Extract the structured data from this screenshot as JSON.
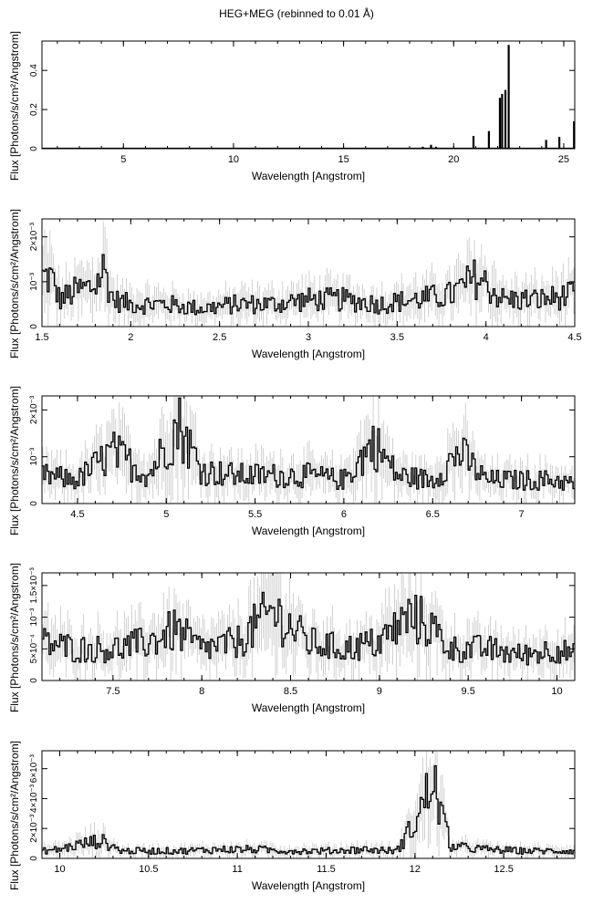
{
  "page_title": "HEG+MEG (rebinned to 0.01 Å)",
  "chart_data": [
    {
      "type": "line",
      "xlabel": "Wavelength [Angstrom]",
      "ylabel": "Flux [Photons/s/cm²/Angstrom]",
      "xlim": [
        1.3,
        25.5
      ],
      "ylim": [
        0,
        0.55
      ],
      "xticks": [
        5,
        10,
        15,
        20,
        25
      ],
      "yticks": [
        {
          "v": 0,
          "label": "0"
        },
        {
          "v": 0.2,
          "label": "0.2"
        },
        {
          "v": 0.4,
          "label": "0.4"
        }
      ],
      "lines": [
        {
          "x": 18.6,
          "y": 0.01
        },
        {
          "x": 18.97,
          "y": 0.02
        },
        {
          "x": 19.2,
          "y": 0.01
        },
        {
          "x": 20.9,
          "y": 0.065
        },
        {
          "x": 21.6,
          "y": 0.09
        },
        {
          "x": 22.1,
          "y": 0.26
        },
        {
          "x": 22.2,
          "y": 0.28
        },
        {
          "x": 22.35,
          "y": 0.3
        },
        {
          "x": 22.5,
          "y": 0.53
        },
        {
          "x": 24.2,
          "y": 0.045
        },
        {
          "x": 24.8,
          "y": 0.06
        },
        {
          "x": 25.5,
          "y": 0.14
        }
      ],
      "baseline": 0.002
    },
    {
      "type": "line",
      "xlabel": "Wavelength [Angstrom]",
      "ylabel": "Flux [Photons/s/cm²/Angstrom]",
      "xlim": [
        1.5,
        4.5
      ],
      "ylim": [
        0,
        0.0024
      ],
      "xticks": [
        1.5,
        2,
        2.5,
        3,
        3.5,
        4,
        4.5
      ],
      "yticks": [
        {
          "v": 0,
          "label": "0"
        },
        {
          "v": 0.001,
          "label": "10⁻³"
        },
        {
          "v": 0.002,
          "label": "2×10⁻³"
        }
      ],
      "points": [
        {
          "x": 1.55,
          "y": 0.0011
        },
        {
          "x": 1.6,
          "y": 0.0006
        },
        {
          "x": 1.7,
          "y": 0.0008
        },
        {
          "x": 1.8,
          "y": 0.0009
        },
        {
          "x": 1.85,
          "y": 0.0013
        },
        {
          "x": 1.9,
          "y": 0.0006
        },
        {
          "x": 2.0,
          "y": 0.0005
        },
        {
          "x": 2.2,
          "y": 0.0005
        },
        {
          "x": 2.4,
          "y": 0.0004
        },
        {
          "x": 2.6,
          "y": 0.0005
        },
        {
          "x": 2.8,
          "y": 0.0005
        },
        {
          "x": 3.0,
          "y": 0.0006
        },
        {
          "x": 3.2,
          "y": 0.0006
        },
        {
          "x": 3.4,
          "y": 0.0005
        },
        {
          "x": 3.6,
          "y": 0.0006
        },
        {
          "x": 3.8,
          "y": 0.0007
        },
        {
          "x": 3.95,
          "y": 0.0011
        },
        {
          "x": 4.1,
          "y": 0.0006
        },
        {
          "x": 4.3,
          "y": 0.0006
        },
        {
          "x": 4.5,
          "y": 0.0007
        }
      ]
    },
    {
      "type": "line",
      "xlabel": "Wavelength [Angstrom]",
      "ylabel": "Flux [Photons/s/cm²/Angstrom]",
      "xlim": [
        4.3,
        7.3
      ],
      "ylim": [
        0,
        0.0023
      ],
      "xticks": [
        4.5,
        5,
        5.5,
        6,
        6.5,
        7
      ],
      "yticks": [
        {
          "v": 0,
          "label": "0"
        },
        {
          "v": 0.001,
          "label": "10⁻³"
        },
        {
          "v": 0.002,
          "label": "2×10⁻³"
        }
      ],
      "points": [
        {
          "x": 4.3,
          "y": 0.0006
        },
        {
          "x": 4.5,
          "y": 0.0005
        },
        {
          "x": 4.7,
          "y": 0.0011
        },
        {
          "x": 4.9,
          "y": 0.0006
        },
        {
          "x": 5.07,
          "y": 0.0017
        },
        {
          "x": 5.2,
          "y": 0.0007
        },
        {
          "x": 5.4,
          "y": 0.0006
        },
        {
          "x": 5.6,
          "y": 0.0006
        },
        {
          "x": 5.8,
          "y": 0.0006
        },
        {
          "x": 6.0,
          "y": 0.0005
        },
        {
          "x": 6.17,
          "y": 0.0013
        },
        {
          "x": 6.3,
          "y": 0.0006
        },
        {
          "x": 6.5,
          "y": 0.0005
        },
        {
          "x": 6.65,
          "y": 0.0011
        },
        {
          "x": 6.8,
          "y": 0.0005
        },
        {
          "x": 7.0,
          "y": 0.0005
        },
        {
          "x": 7.2,
          "y": 0.0005
        },
        {
          "x": 7.3,
          "y": 0.0004
        }
      ]
    },
    {
      "type": "line",
      "xlabel": "Wavelength [Angstrom]",
      "ylabel": "Flux [Photons/s/cm²/Angstrom]",
      "xlim": [
        7.1,
        10.1
      ],
      "ylim": [
        0,
        0.0017
      ],
      "xticks": [
        7.5,
        8,
        8.5,
        9,
        9.5,
        10
      ],
      "yticks": [
        {
          "v": 0,
          "label": "0"
        },
        {
          "v": 0.0005,
          "label": "5×10⁻⁴"
        },
        {
          "v": 0.001,
          "label": "10⁻³"
        },
        {
          "v": 0.0015,
          "label": "1.5×10⁻³"
        }
      ],
      "points": [
        {
          "x": 7.1,
          "y": 0.0006
        },
        {
          "x": 7.3,
          "y": 0.0005
        },
        {
          "x": 7.5,
          "y": 0.0005
        },
        {
          "x": 7.7,
          "y": 0.0006
        },
        {
          "x": 7.85,
          "y": 0.0008
        },
        {
          "x": 8.0,
          "y": 0.0005
        },
        {
          "x": 8.2,
          "y": 0.0006
        },
        {
          "x": 8.4,
          "y": 0.0011
        },
        {
          "x": 8.6,
          "y": 0.0006
        },
        {
          "x": 8.8,
          "y": 0.0005
        },
        {
          "x": 9.0,
          "y": 0.0006
        },
        {
          "x": 9.17,
          "y": 0.001
        },
        {
          "x": 9.27,
          "y": 0.0009
        },
        {
          "x": 9.4,
          "y": 0.0005
        },
        {
          "x": 9.6,
          "y": 0.0005
        },
        {
          "x": 9.8,
          "y": 0.0004
        },
        {
          "x": 10.0,
          "y": 0.0005
        },
        {
          "x": 10.1,
          "y": 0.0004
        }
      ]
    },
    {
      "type": "line",
      "xlabel": "Wavelength [Angstrom]",
      "ylabel": "Flux [Photons/s/cm²/Angstrom]",
      "xlim": [
        9.9,
        12.9
      ],
      "ylim": [
        0,
        0.0072
      ],
      "xticks": [
        10,
        10.5,
        11,
        11.5,
        12,
        12.5
      ],
      "yticks": [
        {
          "v": 0,
          "label": "0"
        },
        {
          "v": 0.002,
          "label": "2×10⁻³"
        },
        {
          "v": 0.004,
          "label": "4×10⁻³"
        },
        {
          "v": 0.006,
          "label": "6×10⁻³"
        }
      ],
      "points": [
        {
          "x": 9.9,
          "y": 0.0005
        },
        {
          "x": 10.0,
          "y": 0.0006
        },
        {
          "x": 10.1,
          "y": 0.0009
        },
        {
          "x": 10.23,
          "y": 0.0012
        },
        {
          "x": 10.35,
          "y": 0.0005
        },
        {
          "x": 10.5,
          "y": 0.0005
        },
        {
          "x": 10.7,
          "y": 0.0005
        },
        {
          "x": 10.9,
          "y": 0.0006
        },
        {
          "x": 11.1,
          "y": 0.0006
        },
        {
          "x": 11.3,
          "y": 0.0005
        },
        {
          "x": 11.5,
          "y": 0.0005
        },
        {
          "x": 11.7,
          "y": 0.0006
        },
        {
          "x": 11.9,
          "y": 0.0005
        },
        {
          "x": 12.02,
          "y": 0.0028
        },
        {
          "x": 12.1,
          "y": 0.0052
        },
        {
          "x": 12.14,
          "y": 0.0035
        },
        {
          "x": 12.2,
          "y": 0.0008
        },
        {
          "x": 12.4,
          "y": 0.0006
        },
        {
          "x": 12.6,
          "y": 0.0005
        },
        {
          "x": 12.8,
          "y": 0.0005
        },
        {
          "x": 12.9,
          "y": 0.0005
        }
      ]
    }
  ]
}
